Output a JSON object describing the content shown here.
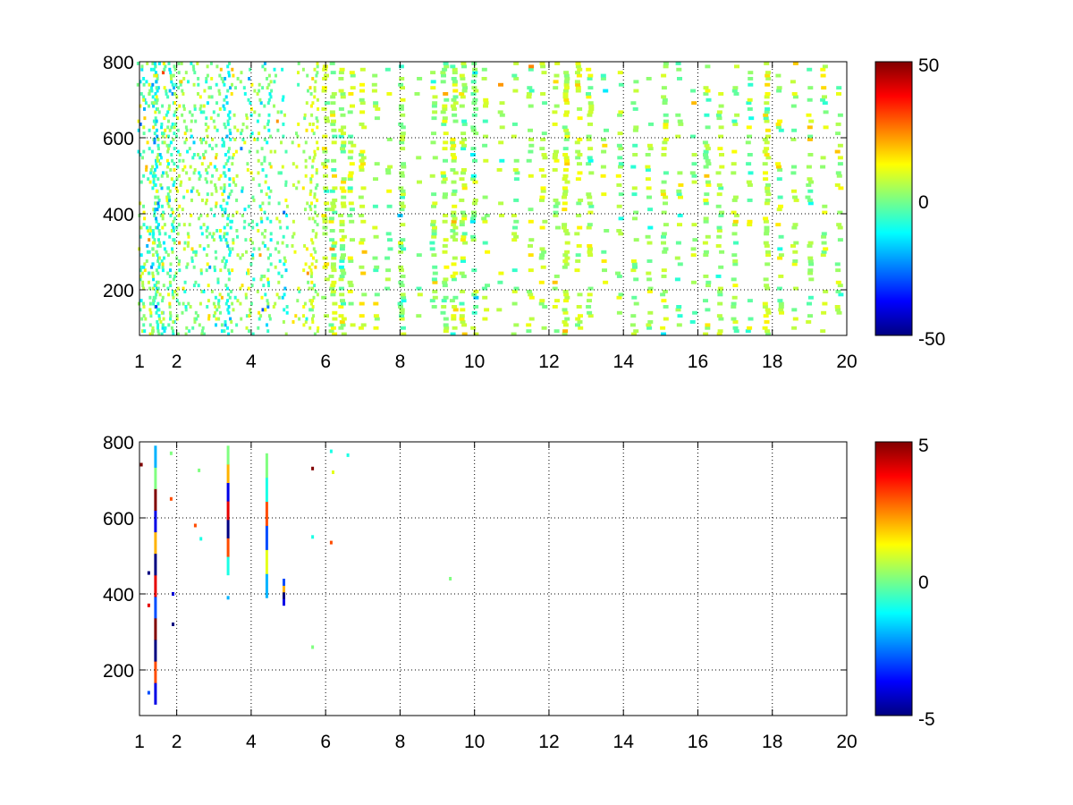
{
  "colormap": {
    "name": "jet",
    "stops": [
      "#000080",
      "#0000ff",
      "#00ffff",
      "#ffff00",
      "#ff0000",
      "#800000"
    ]
  },
  "chart_data": [
    {
      "type": "heatmap",
      "title": "",
      "xlabel": "",
      "ylabel": "",
      "xlim": [
        1,
        20
      ],
      "ylim": [
        80,
        800
      ],
      "xticks": [
        "1",
        "2",
        "4",
        "6",
        "8",
        "10",
        "12",
        "14",
        "16",
        "18",
        "20"
      ],
      "yticks": [
        "200",
        "400",
        "600",
        "800"
      ],
      "grid": true,
      "colorbar": {
        "range": [
          -50,
          50
        ],
        "ticks": [
          "50",
          "0",
          "-50"
        ]
      },
      "columns": [
        {
          "x": 1.05,
          "density": 0.45,
          "mean": -3,
          "spread": 10
        },
        {
          "x": 1.2,
          "density": 0.5,
          "mean": -2,
          "spread": 10
        },
        {
          "x": 1.35,
          "density": 0.5,
          "mean": 0,
          "spread": 10
        },
        {
          "x": 1.45,
          "density": 0.95,
          "mean": -8,
          "spread": 7
        },
        {
          "x": 1.55,
          "density": 0.6,
          "mean": -4,
          "spread": 8
        },
        {
          "x": 1.7,
          "density": 0.5,
          "mean": 2,
          "spread": 9
        },
        {
          "x": 1.85,
          "density": 0.85,
          "mean": -6,
          "spread": 7
        },
        {
          "x": 2.0,
          "density": 0.55,
          "mean": 3,
          "spread": 8
        },
        {
          "x": 2.2,
          "density": 0.5,
          "mean": 2,
          "spread": 8
        },
        {
          "x": 2.4,
          "density": 0.5,
          "mean": -1,
          "spread": 8
        },
        {
          "x": 2.6,
          "density": 0.45,
          "mean": 0,
          "spread": 8
        },
        {
          "x": 2.8,
          "density": 0.5,
          "mean": 1,
          "spread": 8
        },
        {
          "x": 3.0,
          "density": 0.45,
          "mean": -1,
          "spread": 8
        },
        {
          "x": 3.2,
          "density": 0.45,
          "mean": 1,
          "spread": 8
        },
        {
          "x": 3.35,
          "density": 0.9,
          "mean": -10,
          "spread": 6
        },
        {
          "x": 3.55,
          "density": 0.4,
          "mean": 2,
          "spread": 8
        },
        {
          "x": 3.8,
          "density": 0.35,
          "mean": 0,
          "spread": 8
        },
        {
          "x": 4.0,
          "density": 0.35,
          "mean": 1,
          "spread": 8
        },
        {
          "x": 4.25,
          "density": 0.35,
          "mean": 0,
          "spread": 8
        },
        {
          "x": 4.45,
          "density": 0.7,
          "mean": -4,
          "spread": 7
        },
        {
          "x": 4.7,
          "density": 0.3,
          "mean": 3,
          "spread": 8
        },
        {
          "x": 4.9,
          "density": 0.3,
          "mean": -5,
          "spread": 9
        },
        {
          "x": 5.2,
          "density": 0.3,
          "mean": 4,
          "spread": 7
        },
        {
          "x": 5.5,
          "density": 0.35,
          "mean": 5,
          "spread": 7
        },
        {
          "x": 5.7,
          "density": 0.9,
          "mean": 6,
          "spread": 5
        },
        {
          "x": 6.0,
          "density": 0.35,
          "mean": 5,
          "spread": 6
        },
        {
          "x": 6.2,
          "density": 0.45,
          "mean": 6,
          "spread": 6
        },
        {
          "x": 6.45,
          "density": 0.5,
          "mean": 4,
          "spread": 6
        },
        {
          "x": 6.7,
          "density": 0.3,
          "mean": 5,
          "spread": 6
        },
        {
          "x": 7.0,
          "density": 0.3,
          "mean": 8,
          "spread": 5
        },
        {
          "x": 7.35,
          "density": 0.2,
          "mean": 5,
          "spread": 6
        },
        {
          "x": 7.7,
          "density": 0.15,
          "mean": 3,
          "spread": 6
        },
        {
          "x": 8.05,
          "density": 0.55,
          "mean": 2,
          "spread": 6
        },
        {
          "x": 8.5,
          "density": 0.15,
          "mean": 4,
          "spread": 6
        },
        {
          "x": 8.9,
          "density": 0.3,
          "mean": 2,
          "spread": 6
        },
        {
          "x": 9.2,
          "density": 0.35,
          "mean": 3,
          "spread": 6
        },
        {
          "x": 9.45,
          "density": 0.55,
          "mean": 6,
          "spread": 6
        },
        {
          "x": 9.7,
          "density": 0.45,
          "mean": 3,
          "spread": 6
        },
        {
          "x": 10.0,
          "density": 0.35,
          "mean": -1,
          "spread": 6
        },
        {
          "x": 10.3,
          "density": 0.25,
          "mean": 3,
          "spread": 6
        },
        {
          "x": 10.7,
          "density": 0.15,
          "mean": 3,
          "spread": 6
        },
        {
          "x": 11.1,
          "density": 0.2,
          "mean": 3,
          "spread": 6
        },
        {
          "x": 11.5,
          "density": 0.25,
          "mean": 3,
          "spread": 6
        },
        {
          "x": 11.85,
          "density": 0.3,
          "mean": 5,
          "spread": 5
        },
        {
          "x": 12.2,
          "density": 0.3,
          "mean": 4,
          "spread": 6
        },
        {
          "x": 12.45,
          "density": 0.5,
          "mean": 8,
          "spread": 5
        },
        {
          "x": 12.8,
          "density": 0.4,
          "mean": 5,
          "spread": 5
        },
        {
          "x": 13.1,
          "density": 0.35,
          "mean": 3,
          "spread": 6
        },
        {
          "x": 13.5,
          "density": 0.2,
          "mean": 1,
          "spread": 6
        },
        {
          "x": 13.9,
          "density": 0.3,
          "mean": 3,
          "spread": 6
        },
        {
          "x": 14.3,
          "density": 0.3,
          "mean": 2,
          "spread": 6
        },
        {
          "x": 14.7,
          "density": 0.25,
          "mean": 1,
          "spread": 6
        },
        {
          "x": 15.1,
          "density": 0.3,
          "mean": 4,
          "spread": 6
        },
        {
          "x": 15.5,
          "density": 0.25,
          "mean": 1,
          "spread": 6
        },
        {
          "x": 15.9,
          "density": 0.2,
          "mean": 3,
          "spread": 6
        },
        {
          "x": 16.25,
          "density": 0.35,
          "mean": 2,
          "spread": 6
        },
        {
          "x": 16.6,
          "density": 0.3,
          "mean": 4,
          "spread": 6
        },
        {
          "x": 17.0,
          "density": 0.35,
          "mean": 3,
          "spread": 6
        },
        {
          "x": 17.4,
          "density": 0.25,
          "mean": 2,
          "spread": 6
        },
        {
          "x": 17.85,
          "density": 0.5,
          "mean": 6,
          "spread": 5
        },
        {
          "x": 18.2,
          "density": 0.3,
          "mean": 3,
          "spread": 6
        },
        {
          "x": 18.6,
          "density": 0.25,
          "mean": 4,
          "spread": 6
        },
        {
          "x": 19.0,
          "density": 0.3,
          "mean": 2,
          "spread": 6
        },
        {
          "x": 19.4,
          "density": 0.3,
          "mean": 4,
          "spread": 6
        },
        {
          "x": 19.8,
          "density": 0.35,
          "mean": 3,
          "spread": 6
        }
      ]
    },
    {
      "type": "heatmap",
      "title": "",
      "xlabel": "",
      "ylabel": "",
      "xlim": [
        1,
        20
      ],
      "ylim": [
        80,
        800
      ],
      "xticks": [
        "1",
        "2",
        "4",
        "6",
        "8",
        "10",
        "12",
        "14",
        "16",
        "18",
        "20"
      ],
      "yticks": [
        "200",
        "400",
        "600",
        "800"
      ],
      "grid": true,
      "colorbar": {
        "range": [
          -5,
          5
        ],
        "ticks": [
          "5",
          "0",
          "-5"
        ]
      },
      "streaks": [
        {
          "x": 1.43,
          "y0": 110,
          "y1": 790,
          "values": [
            -4,
            3,
            -5,
            5,
            -3,
            4,
            -5,
            2,
            -4,
            5,
            0,
            -2
          ]
        },
        {
          "x": 3.38,
          "y0": 450,
          "y1": 790,
          "values": [
            -1,
            3,
            -5,
            4,
            -4,
            2,
            0
          ]
        },
        {
          "x": 4.42,
          "y0": 390,
          "y1": 770,
          "values": [
            -2,
            1,
            -3,
            3,
            -1,
            0
          ]
        },
        {
          "x": 4.88,
          "y0": 370,
          "y1": 440,
          "values": [
            -4,
            -5,
            2,
            -3
          ]
        }
      ],
      "dots": [
        {
          "x": 1.05,
          "y": 740,
          "v": 5
        },
        {
          "x": 1.25,
          "y": 455,
          "v": -5
        },
        {
          "x": 1.25,
          "y": 370,
          "v": 4
        },
        {
          "x": 1.25,
          "y": 140,
          "v": -3
        },
        {
          "x": 1.85,
          "y": 770,
          "v": 0
        },
        {
          "x": 1.85,
          "y": 650,
          "v": 3
        },
        {
          "x": 1.9,
          "y": 400,
          "v": -4
        },
        {
          "x": 1.9,
          "y": 320,
          "v": -5
        },
        {
          "x": 2.5,
          "y": 580,
          "v": 3
        },
        {
          "x": 2.65,
          "y": 545,
          "v": -1
        },
        {
          "x": 2.6,
          "y": 725,
          "v": 0
        },
        {
          "x": 3.38,
          "y": 390,
          "v": -2
        },
        {
          "x": 5.65,
          "y": 730,
          "v": 5
        },
        {
          "x": 5.65,
          "y": 550,
          "v": -1
        },
        {
          "x": 5.65,
          "y": 260,
          "v": 0
        },
        {
          "x": 6.15,
          "y": 775,
          "v": -1
        },
        {
          "x": 6.15,
          "y": 535,
          "v": 3
        },
        {
          "x": 6.2,
          "y": 720,
          "v": 1
        },
        {
          "x": 6.6,
          "y": 765,
          "v": -1
        },
        {
          "x": 9.35,
          "y": 440,
          "v": 0
        }
      ]
    }
  ]
}
